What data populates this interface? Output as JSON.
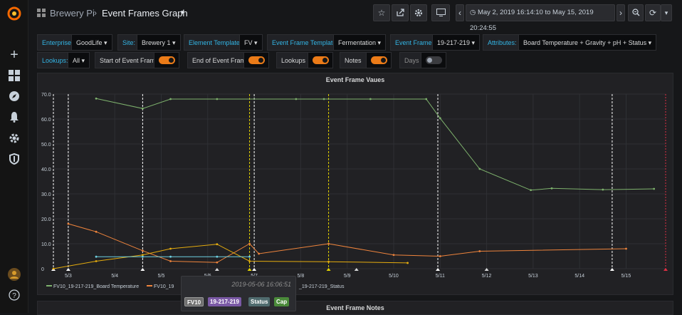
{
  "topbar": {
    "breadcrumb_parent": "Brewery Pi",
    "breadcrumb_title": "Event Frames Graph",
    "time_range": "May 2, 2019 16:14:10 to May 15, 2019 20:24:55"
  },
  "variables": {
    "enterprise_label": "Enterprise:",
    "enterprise_value": "GoodLife",
    "site_label": "Site:",
    "site_value": "Brewery 1",
    "element_template_label": "Element Template:",
    "element_template_value": "FV",
    "ef_template_label": "Event Frame Template:",
    "ef_template_value": "Fermentation",
    "event_frame_label": "Event Frame:",
    "event_frame_value": "19-217-219",
    "attributes_label": "Attributes:",
    "attributes_value": "Board Temperature + Gravity + pH + Status",
    "lookups_label": "Lookups:",
    "lookups_value": "All",
    "start_label": "Start of Event Frame",
    "end_label": "End of Event Frame",
    "lookups_toggle_label": "Lookups",
    "notes_label": "Notes",
    "days_label": "Days"
  },
  "panel": {
    "title": "Event Frame Vaues",
    "notes_title": "Event Frame Notes"
  },
  "legend": {
    "series1": "FV10_19-217-219_Board Temperature",
    "series2_partial": "FV10_19",
    "series4_partial": "_19-217-219_Status"
  },
  "tooltip": {
    "time": "2019-05-06 16:06:51",
    "tags": [
      "FV10",
      "19-217-219",
      "Status",
      "Cap"
    ]
  },
  "colors": {
    "green": "#7eb26d",
    "orange": "#ef843c",
    "yellow": "#e5ac0e",
    "cyan": "#6ed0e0",
    "accent": "#eb7b18"
  },
  "chart_data": {
    "type": "line",
    "ylim": [
      0,
      70
    ],
    "yticks": [
      "0",
      "10.0",
      "20.0",
      "30.0",
      "40.0",
      "50.0",
      "60.0",
      "70.0"
    ],
    "xticks": [
      "5/3",
      "5/4",
      "5/5",
      "5/6",
      "5/7",
      "5/8",
      "5/9",
      "5/10",
      "5/11",
      "5/12",
      "5/13",
      "5/14",
      "5/15"
    ],
    "x_start_day": 2.68,
    "x_end_day": 15.85,
    "series": [
      {
        "name": "FV10_19-217-219_Board Temperature",
        "color": "#7eb26d",
        "x": [
          3.6,
          4.6,
          5.2,
          6.2,
          7.9,
          8.5,
          9.5,
          10.7,
          11.0,
          11.85,
          12.95,
          13.4,
          14.5,
          15.6
        ],
        "y": [
          68.2,
          64.2,
          68.0,
          68.0,
          68.0,
          68.0,
          68.0,
          68.0,
          60.3,
          40.0,
          31.5,
          32.2,
          31.7,
          32.0
        ]
      },
      {
        "name": "FV10_19",
        "color": "#ef843c",
        "x": [
          3.0,
          3.6,
          4.6,
          5.2,
          6.2,
          6.9,
          7.1,
          8.6,
          10.0,
          11.0,
          11.85,
          15.0
        ],
        "y": [
          18.0,
          14.8,
          7.2,
          3.0,
          2.5,
          10.0,
          6.0,
          10.0,
          5.5,
          5.0,
          7.0,
          8.0
        ]
      },
      {
        "name": "",
        "color": "#e5ac0e",
        "x": [
          2.68,
          3.6,
          4.6,
          5.2,
          6.2,
          6.9,
          8.6,
          10.3
        ],
        "y": [
          0.0,
          3.0,
          5.5,
          8.0,
          9.8,
          3.0,
          2.8,
          2.3
        ]
      },
      {
        "name": "",
        "color": "#6ed0e0",
        "x": [
          3.6,
          4.6,
          5.2,
          6.2,
          6.9
        ],
        "y": [
          4.8,
          4.8,
          4.8,
          4.8,
          4.8
        ]
      }
    ],
    "event_lines_white": [
      2.68,
      3.0,
      4.6,
      7.0,
      10.95,
      14.7
    ],
    "event_lines_yellow": [
      6.9,
      8.6
    ],
    "event_lines_red": [
      15.85
    ]
  }
}
